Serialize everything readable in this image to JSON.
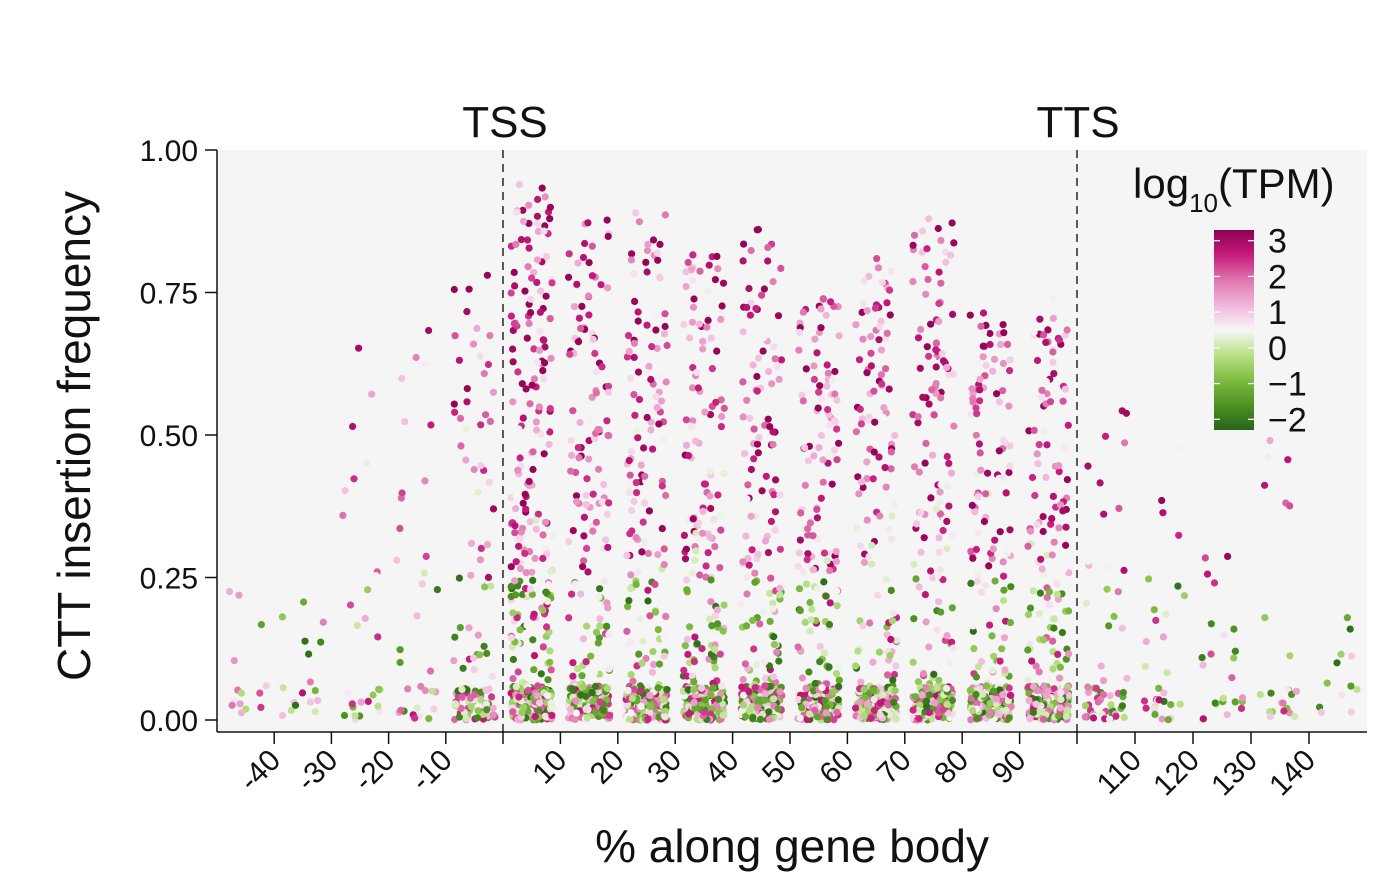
{
  "chart_data": {
    "type": "scatter",
    "title": "",
    "xlabel": "% along gene body",
    "ylabel": "CTT insertion frequency",
    "ylim": [
      0,
      1
    ],
    "yticks": [
      "0.00",
      "0.25",
      "0.50",
      "0.75",
      "1.00"
    ],
    "grid": false,
    "regions": {
      "upstream_ticks": [
        "-40",
        "-30",
        "-20",
        "-10"
      ],
      "gene_body_ticks": [
        "10",
        "20",
        "30",
        "40",
        "50",
        "60",
        "70",
        "80",
        "90"
      ],
      "downstream_ticks": [
        "110",
        "120",
        "130",
        "140"
      ],
      "boundary_labels": [
        "TSS",
        "TTS"
      ]
    },
    "legend": {
      "title_main": "log",
      "title_sub": "10",
      "title_end": "(TPM)",
      "placement": "top-right",
      "ticks": [
        "3",
        "2",
        "1",
        "0",
        "−1",
        "−2"
      ],
      "range": [
        -2.3,
        3.3
      ],
      "colors": [
        "#276419",
        "#4d9221",
        "#7fbc41",
        "#b8e186",
        "#f7f7f7",
        "#f1b6da",
        "#de77ae",
        "#c51b7d",
        "#8e0152"
      ]
    },
    "columns": [
      {
        "x": -45,
        "n": 14,
        "ymax": 0.28
      },
      {
        "x": -35,
        "n": 18,
        "ymax": 0.22
      },
      {
        "x": -25,
        "n": 28,
        "ymax": 0.66
      },
      {
        "x": -15,
        "n": 34,
        "ymax": 0.7
      },
      {
        "x": -5,
        "n": 120,
        "ymax": 0.79
      },
      {
        "x": 5,
        "n": 420,
        "ymax": 0.94
      },
      {
        "x": 15,
        "n": 300,
        "ymax": 0.88
      },
      {
        "x": 25,
        "n": 300,
        "ymax": 0.89
      },
      {
        "x": 35,
        "n": 300,
        "ymax": 0.83
      },
      {
        "x": 45,
        "n": 300,
        "ymax": 0.87
      },
      {
        "x": 55,
        "n": 280,
        "ymax": 0.74
      },
      {
        "x": 65,
        "n": 290,
        "ymax": 0.82
      },
      {
        "x": 75,
        "n": 290,
        "ymax": 0.9
      },
      {
        "x": 85,
        "n": 280,
        "ymax": 0.72
      },
      {
        "x": 95,
        "n": 260,
        "ymax": 0.75
      },
      {
        "x": 105,
        "n": 60,
        "ymax": 0.55
      },
      {
        "x": 115,
        "n": 30,
        "ymax": 0.5
      },
      {
        "x": 125,
        "n": 24,
        "ymax": 0.31
      },
      {
        "x": 135,
        "n": 24,
        "ymax": 0.5
      },
      {
        "x": 145,
        "n": 14,
        "ymax": 0.18
      }
    ]
  }
}
